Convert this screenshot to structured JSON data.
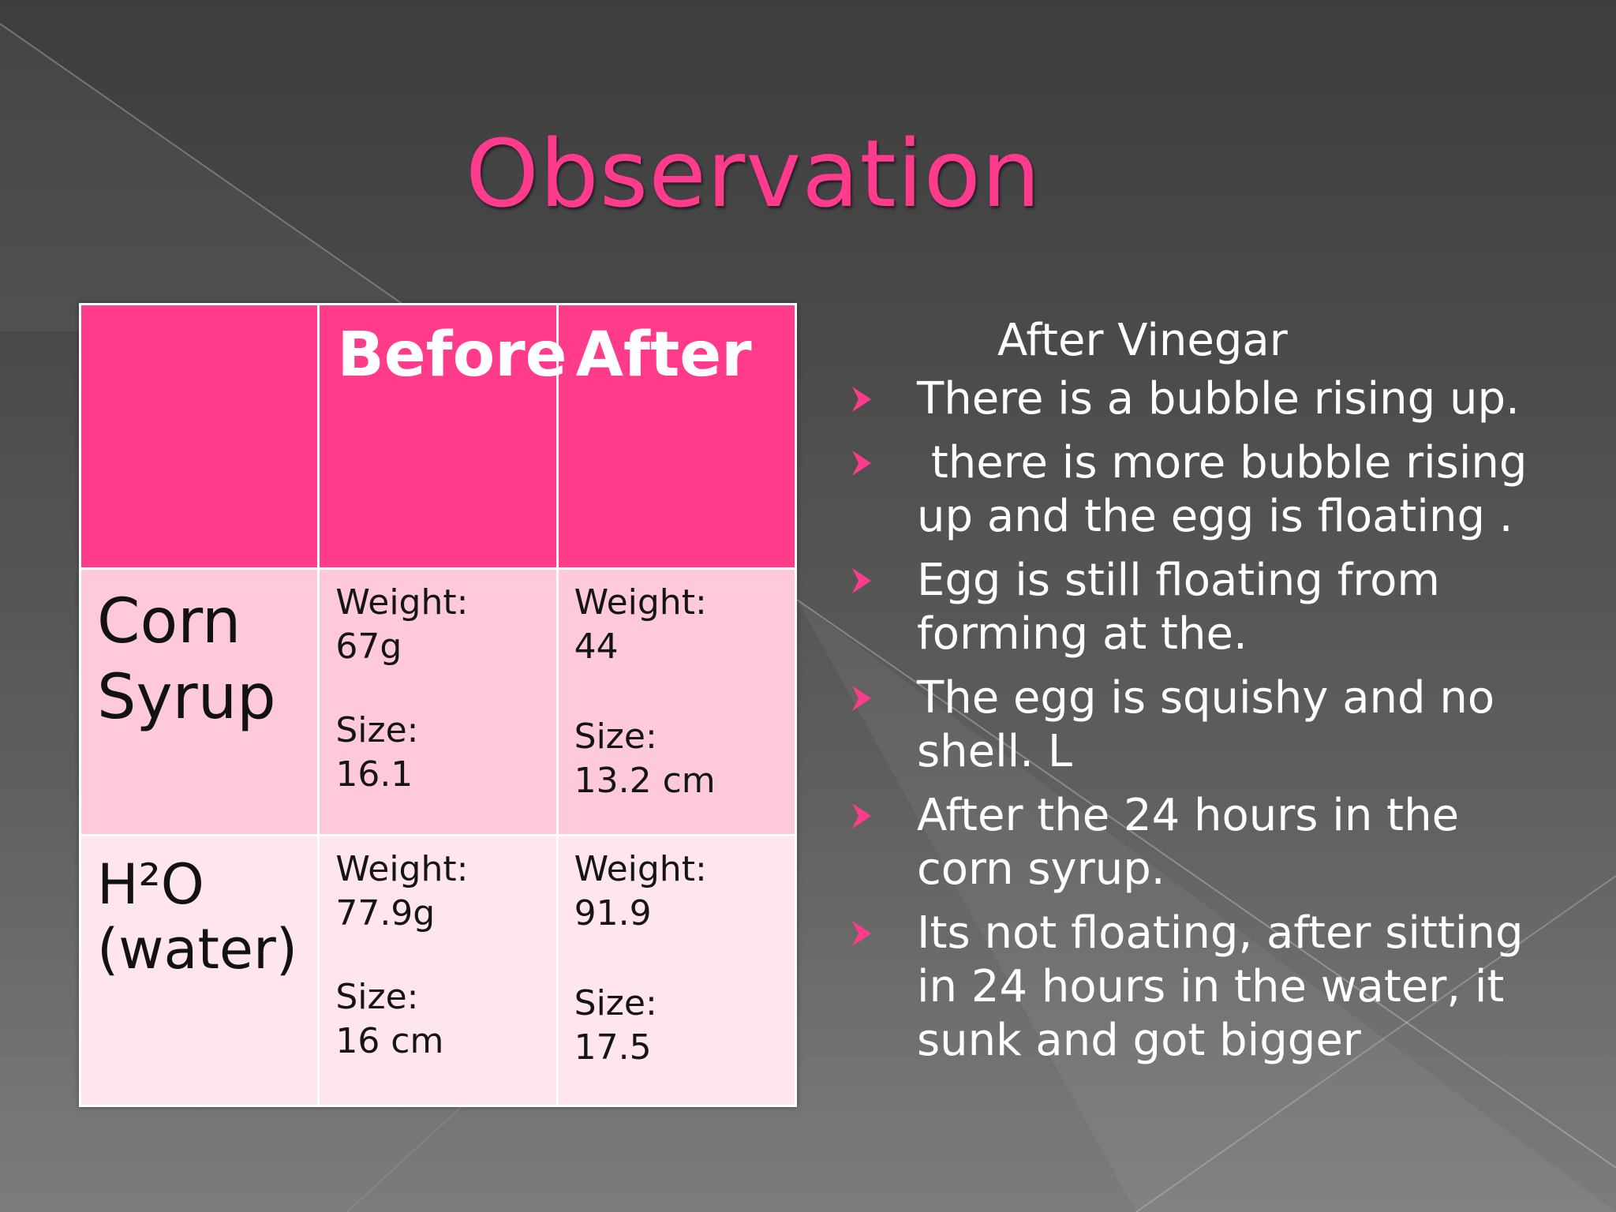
{
  "slide": {
    "title": "Observation",
    "accent_color": "#ff3b8d",
    "table": {
      "headers": [
        "",
        "Before",
        "After"
      ],
      "rows": [
        {
          "label": "Corn Syrup",
          "before": {
            "weight_label": "Weight:",
            "weight": "67g",
            "size_label": "Size:",
            "size": "16.1"
          },
          "after": {
            "weight_label": "Weight:",
            "weight": "44",
            "size_label": "Size:",
            "size": "13.2 cm"
          }
        },
        {
          "label_line1": "H²O",
          "label_line2": "(water)",
          "before": {
            "weight_label": "Weight:",
            "weight": "77.9g",
            "size_label": "Size:",
            "size": "16 cm"
          },
          "after": {
            "weight_label": "Weight:",
            "weight": "91.9",
            "size_label": "Size:",
            "size": "17.5"
          }
        }
      ]
    },
    "notes": {
      "heading": "After Vinegar",
      "bullet_icon": "arrowhead-bullet-icon",
      "bullets": [
        "There is a bubble rising up.",
        " there is more bubble rising up and the egg is floating .",
        "Egg is still floating from forming at the.",
        "The egg is squishy and no shell. L",
        "After the 24 hours in the corn syrup.",
        "Its not floating, after sitting in 24 hours in the water, it sunk and got bigger"
      ]
    }
  }
}
